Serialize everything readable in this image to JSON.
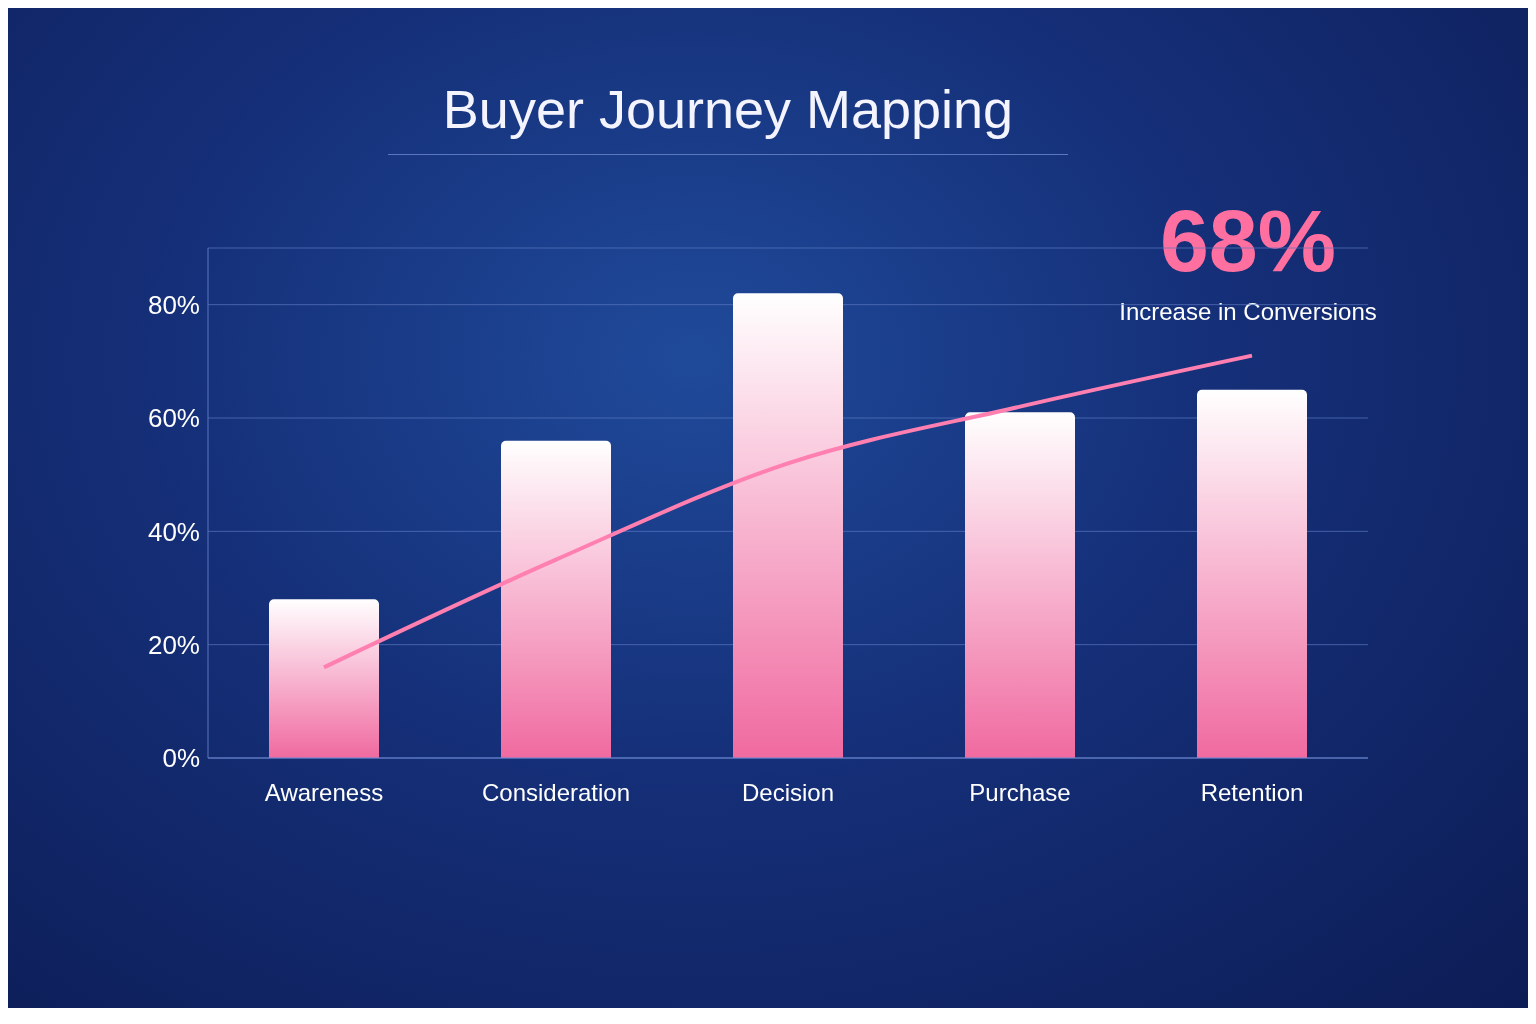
{
  "chart_data": {
    "type": "bar",
    "title": "Buyer Journey Mapping",
    "categories": [
      "Awareness",
      "Consideration",
      "Decision",
      "Purchase",
      "Retention"
    ],
    "series": [
      {
        "color": "#f06aa0",
        "values": [
          28,
          56,
          82,
          61,
          65
        ]
      },
      {
        "type": "line",
        "color": "#ff7fb0",
        "values": [
          16,
          35,
          52,
          62,
          71
        ]
      }
    ],
    "ylim": [
      0,
      90
    ],
    "yticks": [
      {
        "value": 0,
        "label": "0%"
      },
      {
        "value": 20,
        "label": "20%"
      },
      {
        "value": 40,
        "label": "40%"
      },
      {
        "value": 60,
        "label": "60%"
      },
      {
        "value": 80,
        "label": "80%"
      }
    ],
    "grid": "y",
    "marker": "none",
    "line_style": "solid",
    "annotations": [
      "68%",
      "Increase in Conversions"
    ]
  }
}
